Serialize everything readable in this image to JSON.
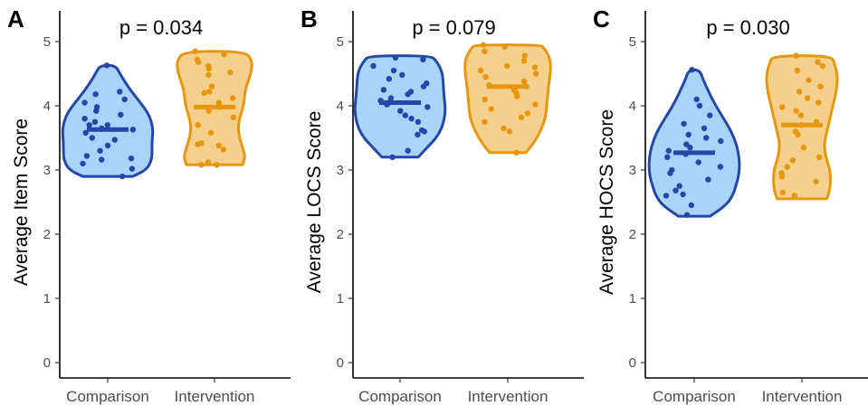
{
  "colors": {
    "comparison_fill": "#a9d3f8",
    "comparison_stroke": "#2447a8",
    "intervention_fill": "#f4d08c",
    "intervention_stroke": "#e8960e"
  },
  "chart_data": [
    {
      "type": "violin",
      "panel": "A",
      "ylabel": "Average Item Score",
      "annotation": "p = 0.034",
      "categories": [
        "Comparison",
        "Intervention"
      ],
      "ylim": [
        0,
        5
      ],
      "yticks": [
        "0",
        "1",
        "2",
        "3",
        "4",
        "5"
      ],
      "grid": false,
      "series": [
        {
          "category": "Comparison",
          "range": [
            2.9,
            4.63
          ],
          "median": 3.63,
          "shape": [
            [
              2.9,
              0.55
            ],
            [
              3.0,
              0.85
            ],
            [
              3.15,
              0.97
            ],
            [
              3.3,
              0.98
            ],
            [
              3.45,
              0.98
            ],
            [
              3.6,
              1.0
            ],
            [
              3.75,
              0.97
            ],
            [
              3.9,
              0.88
            ],
            [
              4.05,
              0.72
            ],
            [
              4.2,
              0.55
            ],
            [
              4.35,
              0.4
            ],
            [
              4.5,
              0.27
            ],
            [
              4.63,
              0.17
            ]
          ],
          "points": [
            2.9,
            3.02,
            3.1,
            3.16,
            3.18,
            3.22,
            3.3,
            3.38,
            3.47,
            3.5,
            3.58,
            3.63,
            3.65,
            3.7,
            3.7,
            3.75,
            3.8,
            3.86,
            3.92,
            3.98,
            4.05,
            4.1,
            4.18,
            4.22,
            4.63
          ]
        },
        {
          "category": "Intervention",
          "range": [
            3.08,
            4.85
          ],
          "median": 3.98,
          "shape": [
            [
              3.08,
              0.62
            ],
            [
              3.2,
              0.68
            ],
            [
              3.35,
              0.62
            ],
            [
              3.5,
              0.55
            ],
            [
              3.65,
              0.52
            ],
            [
              3.8,
              0.55
            ],
            [
              3.95,
              0.62
            ],
            [
              4.1,
              0.66
            ],
            [
              4.25,
              0.68
            ],
            [
              4.4,
              0.75
            ],
            [
              4.55,
              0.82
            ],
            [
              4.7,
              0.83
            ],
            [
              4.85,
              0.68
            ]
          ],
          "points": [
            3.08,
            3.08,
            3.12,
            3.32,
            3.38,
            3.4,
            3.42,
            3.58,
            3.7,
            3.82,
            3.92,
            3.98,
            4.05,
            4.12,
            4.2,
            4.22,
            4.3,
            4.48,
            4.52,
            4.58,
            4.62,
            4.68,
            4.72,
            4.8,
            4.85
          ]
        }
      ]
    },
    {
      "type": "violin",
      "panel": "B",
      "ylabel": "Average LOCS Score",
      "annotation": "p = 0.079",
      "categories": [
        "Comparison",
        "Intervention"
      ],
      "ylim": [
        0,
        5
      ],
      "yticks": [
        "0",
        "1",
        "2",
        "3",
        "4",
        "5"
      ],
      "grid": false,
      "series": [
        {
          "category": "Comparison",
          "range": [
            3.2,
            4.78
          ],
          "median": 4.05,
          "shape": [
            [
              3.2,
              0.4
            ],
            [
              3.35,
              0.6
            ],
            [
              3.5,
              0.8
            ],
            [
              3.65,
              0.92
            ],
            [
              3.8,
              0.98
            ],
            [
              3.95,
              1.0
            ],
            [
              4.1,
              0.98
            ],
            [
              4.25,
              0.96
            ],
            [
              4.4,
              0.95
            ],
            [
              4.55,
              0.92
            ],
            [
              4.7,
              0.8
            ],
            [
              4.78,
              0.68
            ]
          ],
          "points": [
            3.2,
            3.3,
            3.55,
            3.6,
            3.62,
            3.75,
            3.8,
            3.85,
            3.92,
            3.98,
            4.02,
            4.05,
            4.08,
            4.12,
            4.18,
            4.22,
            4.25,
            4.3,
            4.35,
            4.42,
            4.48,
            4.55,
            4.62,
            4.72,
            4.75
          ]
        },
        {
          "category": "Intervention",
          "range": [
            3.27,
            4.95
          ],
          "median": 4.3,
          "shape": [
            [
              3.27,
              0.4
            ],
            [
              3.4,
              0.55
            ],
            [
              3.55,
              0.68
            ],
            [
              3.7,
              0.78
            ],
            [
              3.85,
              0.84
            ],
            [
              4.0,
              0.86
            ],
            [
              4.15,
              0.88
            ],
            [
              4.3,
              0.9
            ],
            [
              4.45,
              0.93
            ],
            [
              4.6,
              0.95
            ],
            [
              4.75,
              0.93
            ],
            [
              4.9,
              0.8
            ],
            [
              4.95,
              0.72
            ]
          ],
          "points": [
            3.27,
            3.6,
            3.65,
            3.75,
            3.82,
            3.88,
            3.95,
            4.02,
            4.1,
            4.15,
            4.2,
            4.25,
            4.3,
            4.32,
            4.38,
            4.45,
            4.5,
            4.55,
            4.6,
            4.62,
            4.7,
            4.78,
            4.85,
            4.92,
            4.95
          ]
        }
      ]
    },
    {
      "type": "violin",
      "panel": "C",
      "ylabel": "Average HOCS Score",
      "annotation": "p = 0.030",
      "categories": [
        "Comparison",
        "Intervention"
      ],
      "ylim": [
        0,
        5
      ],
      "yticks": [
        "0",
        "1",
        "2",
        "3",
        "4",
        "5"
      ],
      "grid": false,
      "series": [
        {
          "category": "Comparison",
          "range": [
            2.28,
            4.56
          ],
          "median": 3.27,
          "shape": [
            [
              2.28,
              0.35
            ],
            [
              2.45,
              0.7
            ],
            [
              2.6,
              0.85
            ],
            [
              2.75,
              0.92
            ],
            [
              2.9,
              0.98
            ],
            [
              3.05,
              1.0
            ],
            [
              3.2,
              0.99
            ],
            [
              3.35,
              0.95
            ],
            [
              3.5,
              0.88
            ],
            [
              3.65,
              0.78
            ],
            [
              3.8,
              0.65
            ],
            [
              3.95,
              0.52
            ],
            [
              4.1,
              0.4
            ],
            [
              4.25,
              0.3
            ],
            [
              4.4,
              0.2
            ],
            [
              4.56,
              0.12
            ]
          ],
          "points": [
            2.3,
            2.45,
            2.6,
            2.62,
            2.68,
            2.75,
            2.85,
            2.95,
            3.0,
            3.05,
            3.12,
            3.2,
            3.25,
            3.3,
            3.35,
            3.4,
            3.45,
            3.5,
            3.55,
            3.65,
            3.72,
            3.85,
            4.0,
            4.1,
            4.56
          ]
        },
        {
          "category": "Intervention",
          "range": [
            2.55,
            4.78
          ],
          "median": 3.7,
          "shape": [
            [
              2.55,
              0.55
            ],
            [
              2.7,
              0.62
            ],
            [
              2.85,
              0.63
            ],
            [
              3.0,
              0.62
            ],
            [
              3.15,
              0.55
            ],
            [
              3.3,
              0.5
            ],
            [
              3.45,
              0.5
            ],
            [
              3.6,
              0.55
            ],
            [
              3.75,
              0.6
            ],
            [
              3.9,
              0.65
            ],
            [
              4.05,
              0.7
            ],
            [
              4.2,
              0.75
            ],
            [
              4.35,
              0.78
            ],
            [
              4.5,
              0.78
            ],
            [
              4.65,
              0.72
            ],
            [
              4.78,
              0.65
            ]
          ],
          "points": [
            2.6,
            2.65,
            2.82,
            2.9,
            2.95,
            3.05,
            3.15,
            3.2,
            3.35,
            3.55,
            3.6,
            3.7,
            3.75,
            3.85,
            3.92,
            3.98,
            4.05,
            4.12,
            4.22,
            4.3,
            4.4,
            4.55,
            4.62,
            4.68,
            4.78
          ]
        }
      ]
    }
  ]
}
